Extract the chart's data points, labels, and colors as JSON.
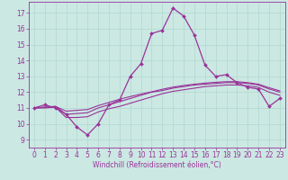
{
  "xlabel": "Windchill (Refroidissement éolien,°C)",
  "bg_color": "#cbe8e3",
  "grid_color": "#b0d8d0",
  "line_color": "#993399",
  "x_ticks": [
    0,
    1,
    2,
    3,
    4,
    5,
    6,
    7,
    8,
    9,
    10,
    11,
    12,
    13,
    14,
    15,
    16,
    17,
    18,
    19,
    20,
    21,
    22,
    23
  ],
  "y_ticks": [
    9,
    10,
    11,
    12,
    13,
    14,
    15,
    16,
    17
  ],
  "xlim": [
    -0.5,
    23.5
  ],
  "ylim": [
    8.5,
    17.7
  ],
  "line1_x": [
    0,
    1,
    2,
    3,
    4,
    5,
    6,
    7,
    8,
    9,
    10,
    11,
    12,
    13,
    14,
    15,
    16,
    17,
    18,
    19,
    20,
    21,
    22,
    23
  ],
  "line1_y": [
    11.0,
    11.2,
    11.0,
    10.6,
    9.8,
    9.3,
    10.0,
    11.2,
    11.5,
    13.0,
    13.8,
    15.7,
    15.9,
    17.3,
    16.8,
    15.6,
    13.7,
    13.0,
    13.1,
    12.6,
    12.3,
    12.2,
    11.1,
    11.6
  ],
  "line2_x": [
    0,
    1,
    2,
    3,
    4,
    5,
    6,
    7,
    8,
    9,
    10,
    11,
    12,
    13,
    14,
    15,
    16,
    17,
    18,
    19,
    20,
    21,
    22,
    23
  ],
  "line2_y": [
    11.0,
    11.0,
    11.05,
    10.4,
    10.4,
    10.45,
    10.75,
    10.95,
    11.1,
    11.3,
    11.5,
    11.7,
    11.9,
    12.05,
    12.15,
    12.25,
    12.35,
    12.4,
    12.45,
    12.45,
    12.4,
    12.3,
    12.0,
    11.8
  ],
  "line3_x": [
    0,
    1,
    2,
    3,
    4,
    5,
    6,
    7,
    8,
    9,
    10,
    11,
    12,
    13,
    14,
    15,
    16,
    17,
    18,
    19,
    20,
    21,
    22,
    23
  ],
  "line3_y": [
    11.0,
    11.05,
    11.1,
    10.6,
    10.65,
    10.7,
    11.0,
    11.2,
    11.4,
    11.6,
    11.8,
    12.0,
    12.1,
    12.25,
    12.35,
    12.45,
    12.5,
    12.55,
    12.6,
    12.6,
    12.55,
    12.45,
    12.2,
    12.0
  ],
  "line4_x": [
    0,
    1,
    2,
    3,
    4,
    5,
    6,
    7,
    8,
    9,
    10,
    11,
    12,
    13,
    14,
    15,
    16,
    17,
    18,
    19,
    20,
    21,
    22,
    23
  ],
  "line4_y": [
    11.0,
    11.05,
    11.1,
    10.8,
    10.85,
    10.9,
    11.15,
    11.35,
    11.55,
    11.72,
    11.88,
    12.02,
    12.18,
    12.32,
    12.42,
    12.5,
    12.57,
    12.62,
    12.66,
    12.66,
    12.6,
    12.5,
    12.28,
    12.08
  ],
  "xlabel_fontsize": 5.5,
  "tick_fontsize": 5.5
}
